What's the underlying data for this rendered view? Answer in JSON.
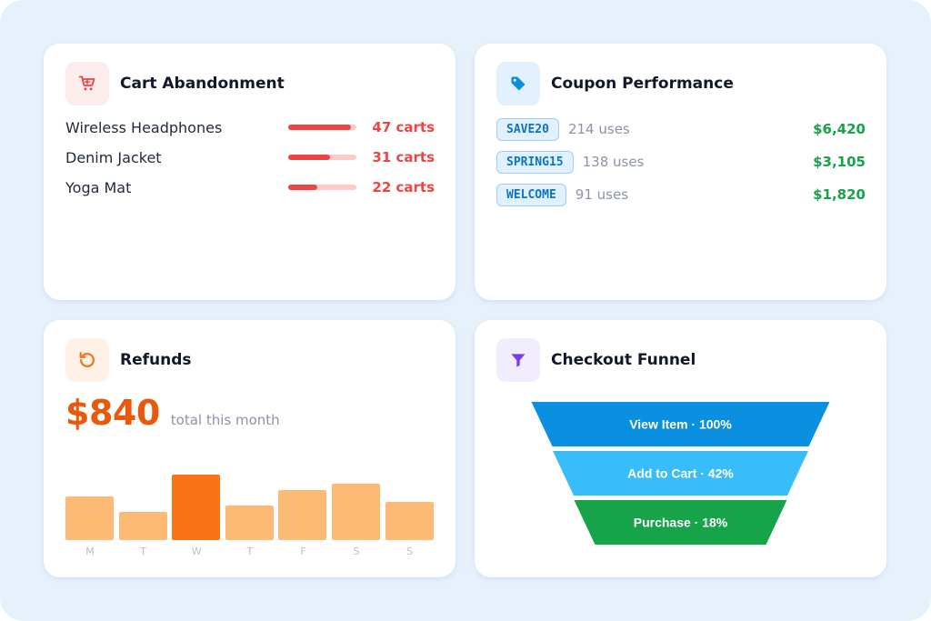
{
  "colors": {
    "background": "#e6f1fc",
    "cart_accent": "#ef4444",
    "coupon_accent": "#0b74c9",
    "refund_accent": "#ea580c",
    "funnel_accent": "#7c3aed",
    "positive": "#16a34a"
  },
  "cart_abandonment": {
    "title": "Cart Abandonment",
    "icon": "shopping-cart-icon",
    "items": [
      {
        "name": "Wireless Headphones",
        "count": "47 carts",
        "level": 0.92
      },
      {
        "name": "Denim Jacket",
        "count": "31 carts",
        "level": 0.61
      },
      {
        "name": "Yoga Mat",
        "count": "22 carts",
        "level": 0.43
      }
    ]
  },
  "coupon_performance": {
    "title": "Coupon Performance",
    "icon": "tag-icon",
    "coupons": [
      {
        "code": "SAVE20",
        "uses": "214 uses",
        "amount": "$6,420"
      },
      {
        "code": "SPRING15",
        "uses": "138 uses",
        "amount": "$3,105"
      },
      {
        "code": "WELCOME",
        "uses": "91 uses",
        "amount": "$1,820"
      }
    ]
  },
  "refunds": {
    "title": "Refunds",
    "icon": "undo-icon",
    "amount": "$840",
    "caption": "total this month",
    "highlight_day": 2,
    "chart_data": {
      "type": "bar",
      "categories": [
        "M",
        "T",
        "W",
        "T",
        "F",
        "S",
        "S"
      ],
      "values": [
        48,
        31,
        72,
        38,
        55,
        62,
        42
      ]
    }
  },
  "checkout_funnel": {
    "title": "Checkout Funnel",
    "icon": "funnel-icon",
    "stages": [
      {
        "label": "View Item · 100%",
        "value": 100,
        "color": "#0b8fe0"
      },
      {
        "label": "Add to Cart · 42%",
        "value": 42,
        "color": "#38bdf8"
      },
      {
        "label": "Purchase · 18%",
        "value": 18,
        "color": "#16a34a"
      }
    ]
  }
}
